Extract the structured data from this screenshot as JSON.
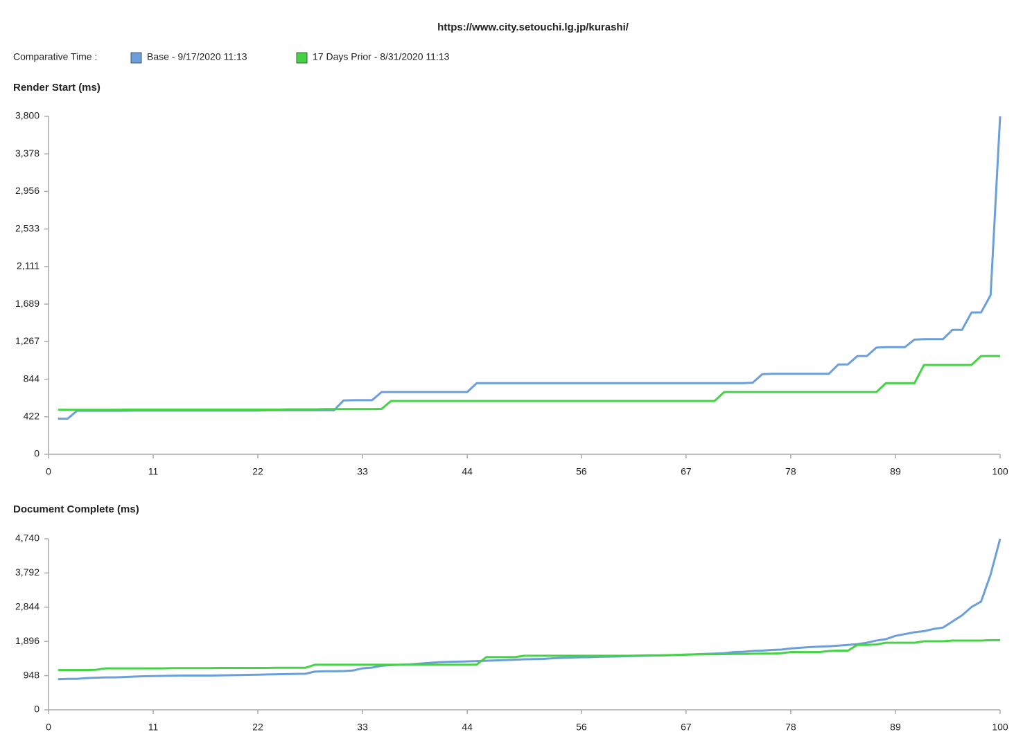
{
  "title": "https://www.city.setouchi.lg.jp/kurashi/",
  "legend_title": "Comparative Time :",
  "chart_data": [
    {
      "type": "line",
      "title": "Render Start (ms)",
      "x": [
        1,
        2,
        3,
        4,
        5,
        6,
        7,
        8,
        9,
        10,
        11,
        12,
        13,
        14,
        15,
        16,
        17,
        18,
        19,
        20,
        21,
        22,
        23,
        24,
        25,
        26,
        27,
        28,
        29,
        30,
        31,
        32,
        33,
        34,
        35,
        36,
        37,
        38,
        39,
        40,
        41,
        42,
        43,
        44,
        45,
        46,
        47,
        48,
        49,
        50,
        51,
        52,
        53,
        54,
        55,
        56,
        57,
        58,
        59,
        60,
        61,
        62,
        63,
        64,
        65,
        66,
        67,
        68,
        69,
        70,
        71,
        72,
        73,
        74,
        75,
        76,
        77,
        78,
        79,
        80,
        81,
        82,
        83,
        84,
        85,
        86,
        87,
        88,
        89,
        90,
        91,
        92,
        93,
        94,
        95,
        96,
        97,
        98,
        99,
        100
      ],
      "xlim": [
        0,
        100
      ],
      "xticks": [
        0,
        11,
        22,
        33,
        44,
        56,
        67,
        78,
        89,
        100
      ],
      "ylim": [
        0,
        3800
      ],
      "yticks": [
        0,
        422,
        844,
        {
          "value": 1267,
          "label": "1,267"
        },
        {
          "value": 1689,
          "label": "1,689"
        },
        {
          "value": 2111,
          "label": "2,111"
        },
        {
          "value": 2533,
          "label": "2,533"
        },
        {
          "value": 2956,
          "label": "2,956"
        },
        {
          "value": 3378,
          "label": "3,378"
        },
        {
          "value": 3800,
          "label": "3,800"
        }
      ],
      "series": [
        {
          "name": "Base - 9/17/2020 11:13",
          "color": "#6a9fdb",
          "values": [
            400,
            400,
            490,
            490,
            490,
            490,
            490,
            490,
            492,
            492,
            492,
            492,
            492,
            492,
            492,
            492,
            492,
            492,
            492,
            492,
            492,
            492,
            495,
            495,
            495,
            495,
            495,
            495,
            495,
            495,
            605,
            608,
            608,
            608,
            700,
            700,
            700,
            700,
            700,
            700,
            700,
            700,
            700,
            700,
            800,
            800,
            800,
            800,
            800,
            800,
            800,
            800,
            800,
            800,
            800,
            800,
            800,
            800,
            800,
            800,
            800,
            800,
            800,
            800,
            800,
            800,
            800,
            800,
            800,
            800,
            800,
            800,
            800,
            805,
            900,
            905,
            905,
            905,
            905,
            905,
            905,
            905,
            1010,
            1010,
            1105,
            1105,
            1200,
            1205,
            1205,
            1205,
            1290,
            1295,
            1295,
            1295,
            1400,
            1400,
            1595,
            1595,
            1790,
            3800
          ]
        },
        {
          "name": "17 Days Prior - 8/31/2020 11:13",
          "color": "#44d344",
          "values": [
            500,
            500,
            500,
            500,
            500,
            500,
            500,
            502,
            502,
            502,
            502,
            502,
            502,
            502,
            502,
            502,
            502,
            502,
            502,
            502,
            502,
            502,
            502,
            502,
            505,
            505,
            505,
            505,
            508,
            508,
            508,
            508,
            508,
            508,
            510,
            600,
            600,
            600,
            600,
            600,
            600,
            600,
            600,
            600,
            600,
            600,
            600,
            600,
            600,
            600,
            600,
            600,
            600,
            600,
            600,
            600,
            600,
            600,
            600,
            600,
            600,
            600,
            600,
            600,
            600,
            600,
            600,
            600,
            600,
            600,
            700,
            700,
            700,
            700,
            700,
            700,
            700,
            700,
            700,
            700,
            700,
            700,
            700,
            700,
            700,
            700,
            700,
            800,
            800,
            800,
            800,
            1005,
            1005,
            1005,
            1005,
            1005,
            1005,
            1105,
            1105,
            1105
          ]
        }
      ]
    },
    {
      "type": "line",
      "title": "Document Complete (ms)",
      "x": [
        1,
        2,
        3,
        4,
        5,
        6,
        7,
        8,
        9,
        10,
        11,
        12,
        13,
        14,
        15,
        16,
        17,
        18,
        19,
        20,
        21,
        22,
        23,
        24,
        25,
        26,
        27,
        28,
        29,
        30,
        31,
        32,
        33,
        34,
        35,
        36,
        37,
        38,
        39,
        40,
        41,
        42,
        43,
        44,
        45,
        46,
        47,
        48,
        49,
        50,
        51,
        52,
        53,
        54,
        55,
        56,
        57,
        58,
        59,
        60,
        61,
        62,
        63,
        64,
        65,
        66,
        67,
        68,
        69,
        70,
        71,
        72,
        73,
        74,
        75,
        76,
        77,
        78,
        79,
        80,
        81,
        82,
        83,
        84,
        85,
        86,
        87,
        88,
        89,
        90,
        91,
        92,
        93,
        94,
        95,
        96,
        97,
        98,
        99,
        100
      ],
      "xlim": [
        0,
        100
      ],
      "xticks": [
        0,
        11,
        22,
        33,
        44,
        56,
        67,
        78,
        89,
        100
      ],
      "ylim": [
        0,
        4740
      ],
      "yticks": [
        0,
        948,
        {
          "value": 1896,
          "label": "1,896"
        },
        {
          "value": 2844,
          "label": "2,844"
        },
        {
          "value": 3792,
          "label": "3,792"
        },
        {
          "value": 4740,
          "label": "4,740"
        }
      ],
      "series": [
        {
          "color": "#6a9fdb",
          "values": [
            850,
            860,
            860,
            880,
            890,
            900,
            900,
            910,
            920,
            930,
            935,
            940,
            945,
            950,
            950,
            950,
            950,
            955,
            960,
            965,
            970,
            975,
            980,
            985,
            990,
            995,
            1000,
            1060,
            1070,
            1070,
            1075,
            1090,
            1150,
            1170,
            1220,
            1240,
            1250,
            1260,
            1280,
            1300,
            1320,
            1330,
            1335,
            1340,
            1350,
            1360,
            1370,
            1380,
            1390,
            1400,
            1405,
            1410,
            1430,
            1440,
            1450,
            1455,
            1460,
            1470,
            1475,
            1480,
            1490,
            1495,
            1500,
            1505,
            1510,
            1520,
            1530,
            1540,
            1550,
            1560,
            1570,
            1600,
            1610,
            1630,
            1640,
            1660,
            1670,
            1700,
            1720,
            1740,
            1750,
            1760,
            1780,
            1800,
            1820,
            1860,
            1920,
            1960,
            2050,
            2100,
            2150,
            2180,
            2240,
            2280,
            2450,
            2620,
            2850,
            3000,
            3750,
            4740
          ]
        },
        {
          "color": "#44d344",
          "values": [
            1100,
            1100,
            1100,
            1100,
            1110,
            1150,
            1150,
            1150,
            1150,
            1150,
            1150,
            1150,
            1155,
            1155,
            1155,
            1155,
            1155,
            1160,
            1160,
            1160,
            1160,
            1160,
            1160,
            1165,
            1165,
            1165,
            1165,
            1250,
            1250,
            1250,
            1250,
            1250,
            1250,
            1250,
            1250,
            1250,
            1250,
            1250,
            1250,
            1250,
            1250,
            1250,
            1250,
            1250,
            1255,
            1460,
            1460,
            1460,
            1460,
            1500,
            1500,
            1500,
            1500,
            1500,
            1500,
            1500,
            1500,
            1500,
            1500,
            1500,
            1500,
            1505,
            1510,
            1510,
            1515,
            1520,
            1530,
            1535,
            1540,
            1540,
            1545,
            1550,
            1550,
            1555,
            1560,
            1560,
            1570,
            1600,
            1600,
            1600,
            1600,
            1630,
            1640,
            1640,
            1800,
            1800,
            1810,
            1860,
            1860,
            1860,
            1860,
            1900,
            1900,
            1900,
            1920,
            1920,
            1920,
            1920,
            1930,
            1930
          ]
        }
      ]
    }
  ]
}
